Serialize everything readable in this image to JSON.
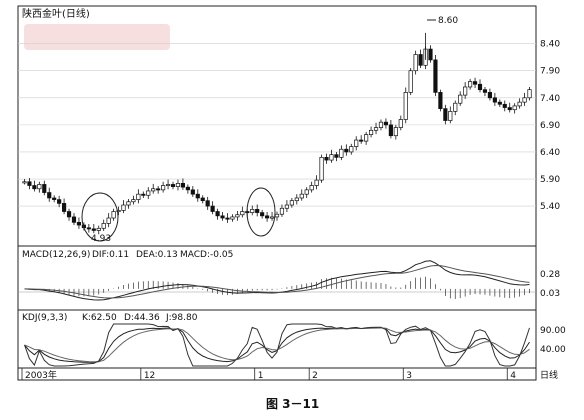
{
  "caption": "图 3－11",
  "chart_data": {
    "type": "candlestick",
    "title": "陕西金叶(日线)",
    "period_label": "日线",
    "x_labels": [
      "2003年",
      "12",
      "1",
      "2",
      "3",
      "4"
    ],
    "price_axis": {
      "ticks": [
        "8.40",
        "7.90",
        "7.40",
        "6.90",
        "6.40",
        "5.90",
        "5.40"
      ],
      "range": [
        4.7,
        8.8
      ]
    },
    "annotations": {
      "high": {
        "label": "8.60",
        "value": 8.6
      },
      "low": {
        "label": "4.93",
        "value": 4.93
      }
    },
    "price_series": [
      5.85,
      5.78,
      5.72,
      5.8,
      5.65,
      5.55,
      5.52,
      5.45,
      5.3,
      5.2,
      5.1,
      5.05,
      5.0,
      4.98,
      4.95,
      4.99,
      5.08,
      5.18,
      5.3,
      5.32,
      5.42,
      5.48,
      5.52,
      5.62,
      5.6,
      5.68,
      5.72,
      5.7,
      5.78,
      5.8,
      5.76,
      5.82,
      5.75,
      5.7,
      5.62,
      5.55,
      5.5,
      5.4,
      5.3,
      5.22,
      5.18,
      5.16,
      5.2,
      5.24,
      5.3,
      5.28,
      5.34,
      5.28,
      5.22,
      5.18,
      5.2,
      5.25,
      5.36,
      5.42,
      5.5,
      5.55,
      5.62,
      5.7,
      5.78,
      5.88,
      6.3,
      6.25,
      6.35,
      6.3,
      6.45,
      6.4,
      6.5,
      6.62,
      6.6,
      6.72,
      6.8,
      6.85,
      6.95,
      6.9,
      6.7,
      6.85,
      7.0,
      7.5,
      7.9,
      8.2,
      8.0,
      8.3,
      8.1,
      7.5,
      7.2,
      6.98,
      7.15,
      7.3,
      7.45,
      7.6,
      7.7,
      7.65,
      7.55,
      7.5,
      7.4,
      7.32,
      7.28,
      7.22,
      7.18,
      7.25,
      7.32,
      7.4,
      7.55
    ],
    "macd": {
      "label": "MACD(12,26,9)",
      "dif_label": "DIF:0.11",
      "dea_label": "DEA:0.13",
      "macd_label": "MACD:-0.05",
      "ticks": [
        "0.28",
        "0.03"
      ],
      "range": [
        -0.35,
        0.55
      ]
    },
    "kdj": {
      "label": "KDJ(9,3,3)",
      "k_label": "K:62.50",
      "d_label": "D:44.36",
      "j_label": "J:98.80",
      "ticks": [
        "90.00",
        "40.00"
      ],
      "range": [
        -10,
        110
      ]
    },
    "colors": {
      "up": "#ffffff",
      "down": "#111111",
      "line": "#222222",
      "grid": "#cfcfcf"
    }
  }
}
